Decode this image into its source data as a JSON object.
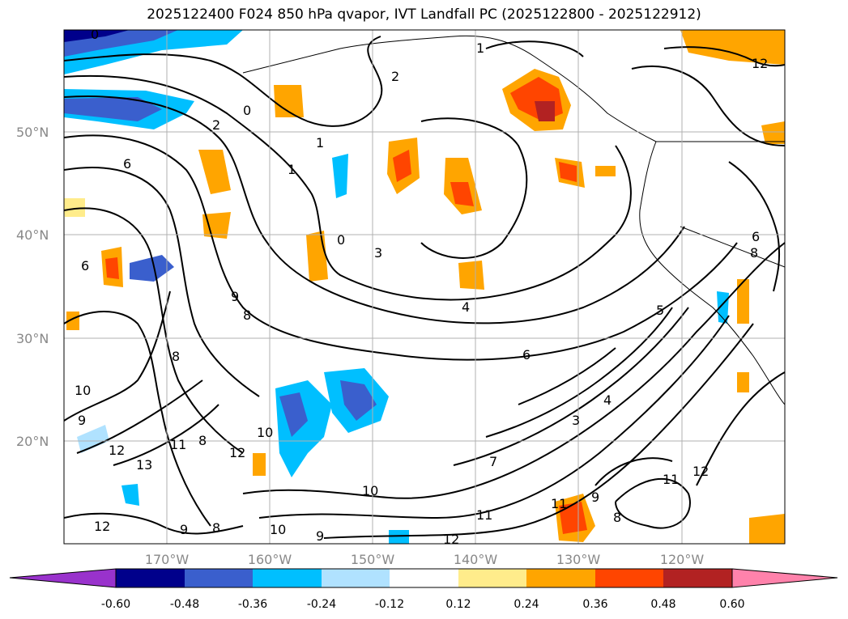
{
  "title": "2025122400 F024 850 hPa qvapor, IVT Landfall PC (2025122800 - 2025122912)",
  "lat_labels": [
    "50°N",
    "40°N",
    "30°N",
    "20°N"
  ],
  "lon_labels": [
    "170°W",
    "160°W",
    "150°W",
    "140°W",
    "130°W",
    "120°W"
  ],
  "colorbar": {
    "colors": [
      "#9932cc",
      "#00008b",
      "#3a5fcd",
      "#00bfff",
      "#b0e2ff",
      "#ffffff",
      "#ffec8b",
      "#ffa500",
      "#ff4500",
      "#b22222",
      "#ff82ab"
    ],
    "tick_labels": [
      "-0.60",
      "-0.48",
      "-0.36",
      "-0.24",
      "-0.12",
      "0.12",
      "0.24",
      "0.36",
      "0.48",
      "0.60"
    ],
    "extend": "both"
  },
  "contour_labels": [
    "0",
    "1",
    "2",
    "0",
    "1",
    "2",
    "6",
    "1",
    "0",
    "3",
    "4",
    "6",
    "5",
    "6",
    "8",
    "9",
    "8",
    "10",
    "9",
    "12",
    "13",
    "11",
    "12",
    "10",
    "9",
    "8",
    "12",
    "10",
    "8",
    "9",
    "4",
    "3",
    "7",
    "10",
    "11",
    "12",
    "11",
    "12",
    "9",
    "8",
    "11",
    "12",
    "8",
    "6"
  ]
}
